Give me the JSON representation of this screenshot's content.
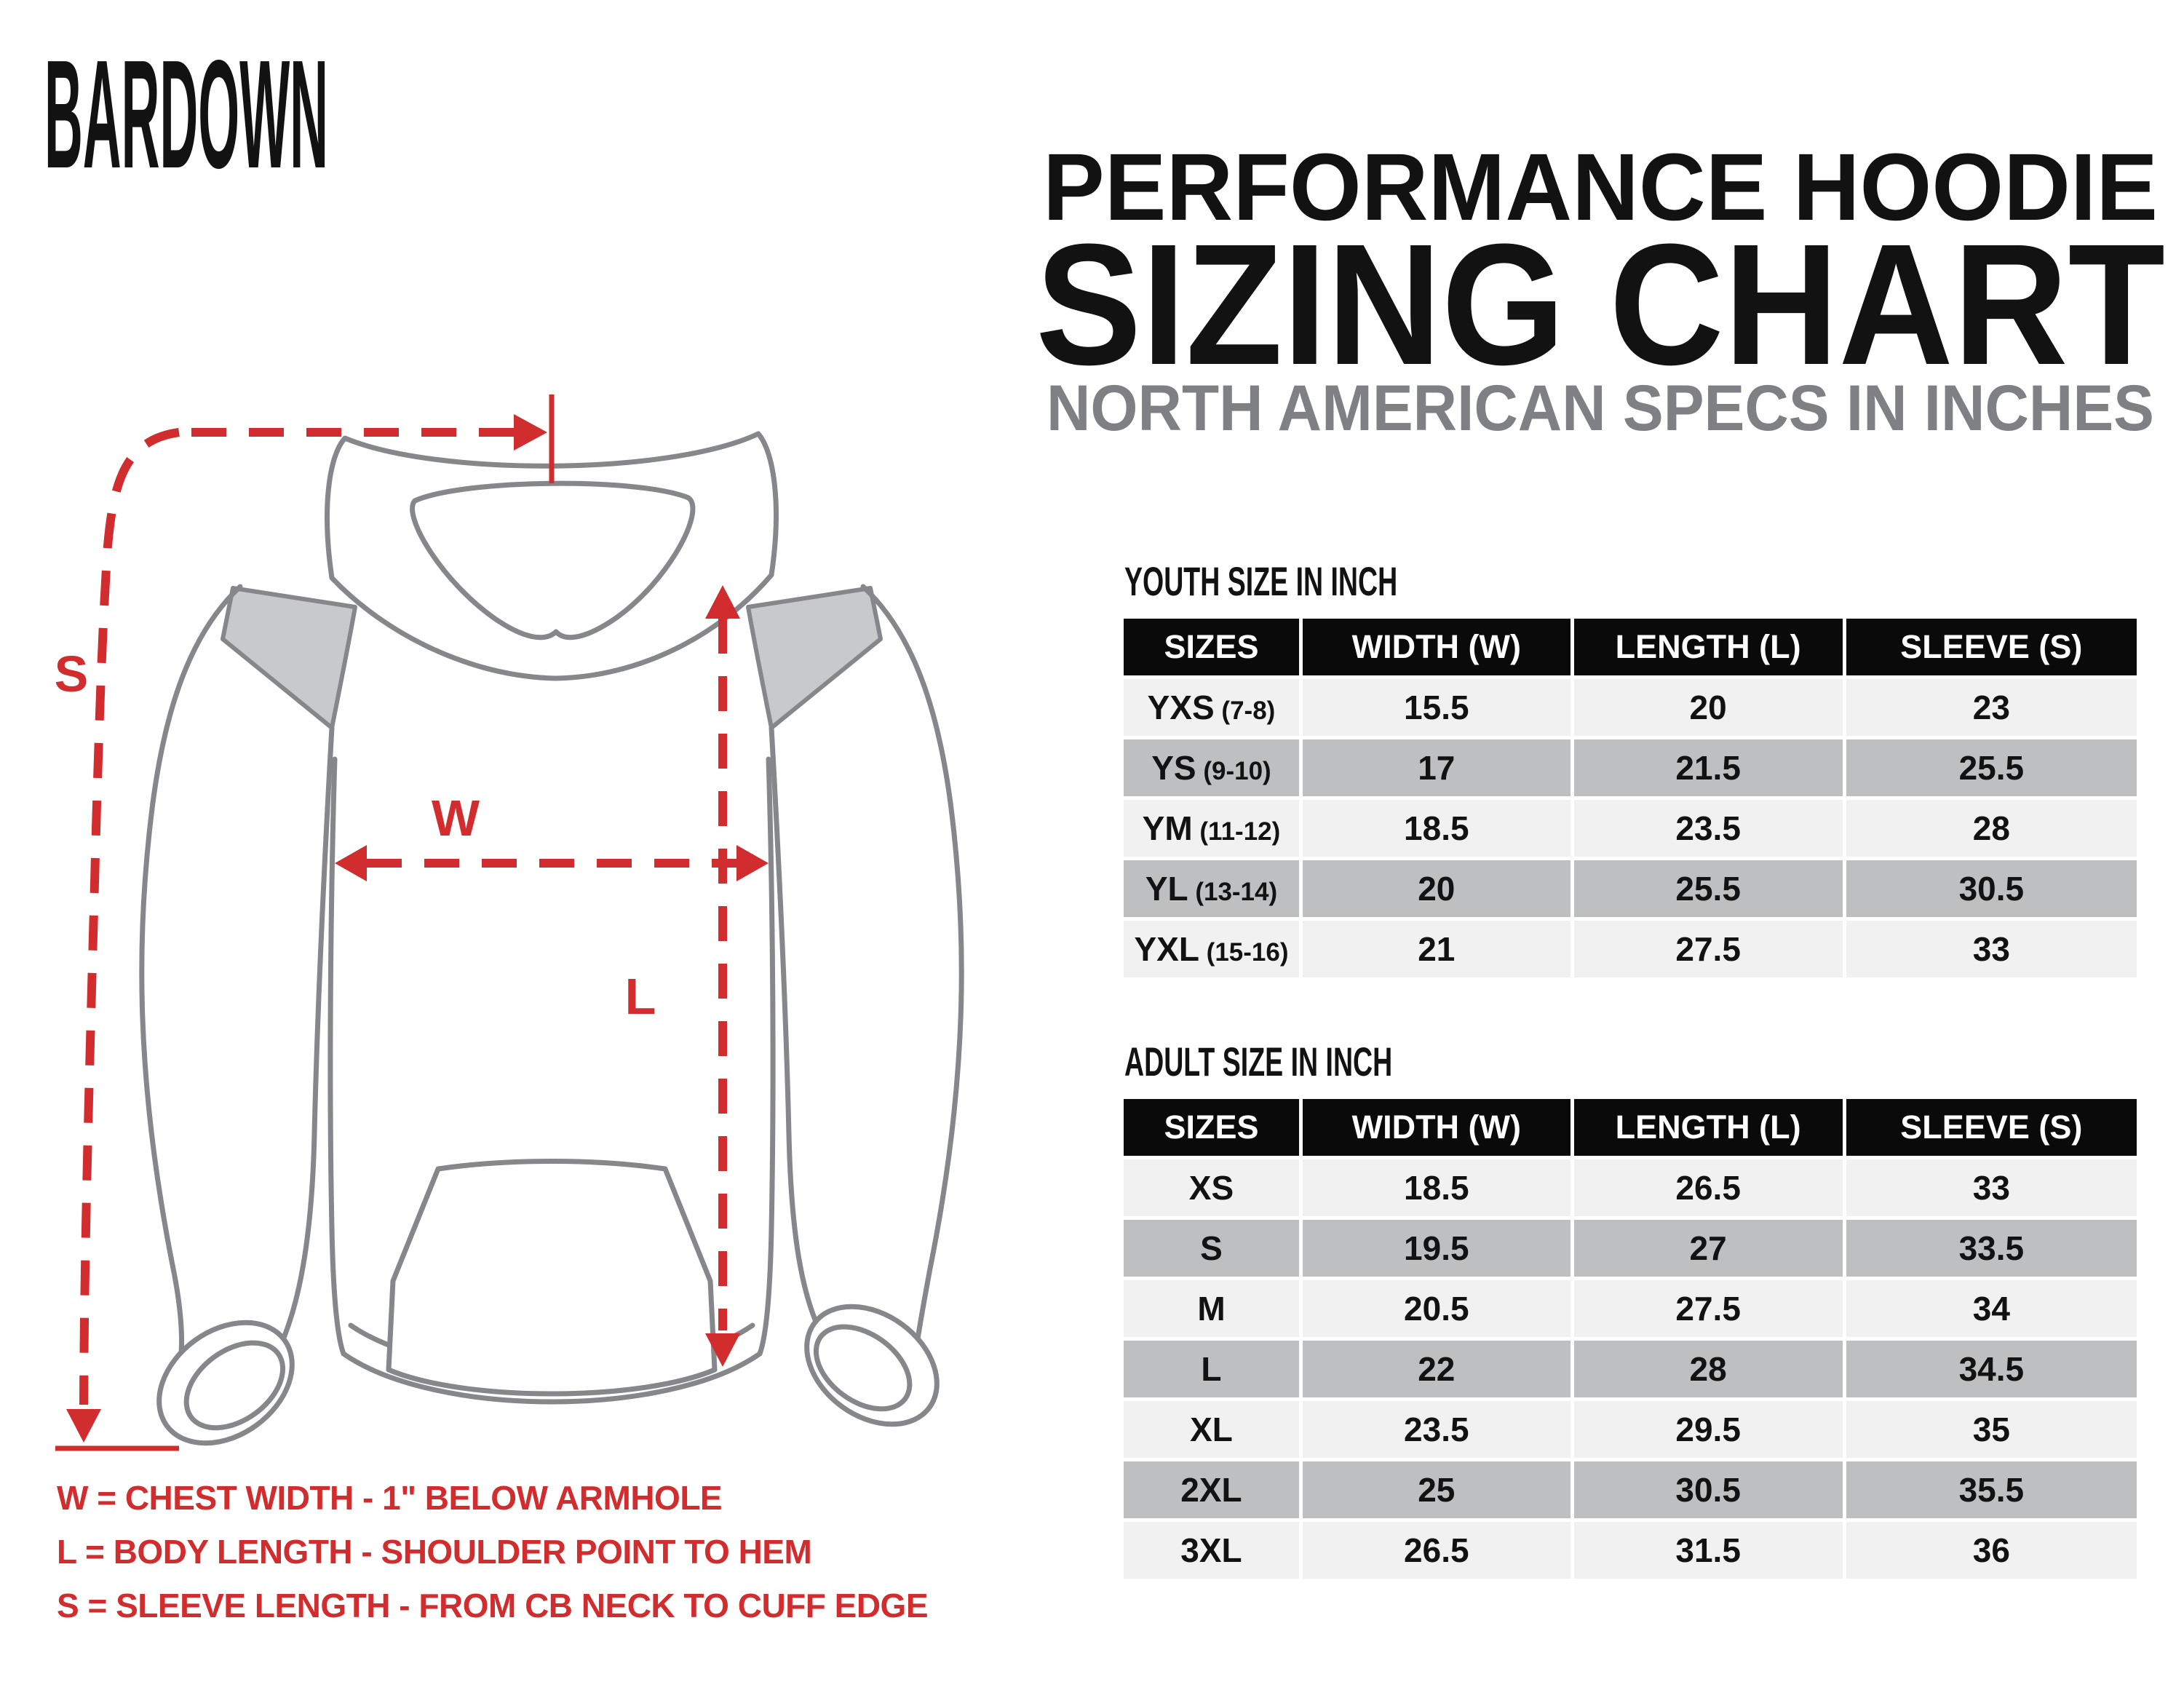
{
  "brand": {
    "logo_text": "BARDOWN"
  },
  "header": {
    "title_line1": "PERFORMANCE HOODIE",
    "title_line2": "SIZING CHART",
    "subtitle": "NORTH AMERICAN SPECS IN INCHES"
  },
  "diagram": {
    "labels": {
      "sleeve": "S",
      "width": "W",
      "length": "L"
    }
  },
  "legend": {
    "lines": [
      "W = CHEST WIDTH - 1\" BELOW ARMHOLE",
      "L = BODY LENGTH - SHOULDER POINT TO HEM",
      "S = SLEEVE LENGTH - FROM CB NECK TO CUFF EDGE"
    ]
  },
  "youth_table": {
    "title": "YOUTH SIZE IN INCH",
    "columns": [
      "SIZES",
      "WIDTH (W)",
      "LENGTH (L)",
      "SLEEVE (S)"
    ],
    "rows": [
      {
        "size": "YXS",
        "age": "(7-8)",
        "width": "15.5",
        "length": "20",
        "sleeve": "23"
      },
      {
        "size": "YS",
        "age": "(9-10)",
        "width": "17",
        "length": "21.5",
        "sleeve": "25.5"
      },
      {
        "size": "YM",
        "age": "(11-12)",
        "width": "18.5",
        "length": "23.5",
        "sleeve": "28"
      },
      {
        "size": "YL",
        "age": "(13-14)",
        "width": "20",
        "length": "25.5",
        "sleeve": "30.5"
      },
      {
        "size": "YXL",
        "age": "(15-16)",
        "width": "21",
        "length": "27.5",
        "sleeve": "33"
      }
    ]
  },
  "adult_table": {
    "title": "ADULT SIZE IN INCH",
    "columns": [
      "SIZES",
      "WIDTH (W)",
      "LENGTH (L)",
      "SLEEVE (S)"
    ],
    "rows": [
      {
        "size": "XS",
        "age": "",
        "width": "18.5",
        "length": "26.5",
        "sleeve": "33"
      },
      {
        "size": "S",
        "age": "",
        "width": "19.5",
        "length": "27",
        "sleeve": "33.5"
      },
      {
        "size": "M",
        "age": "",
        "width": "20.5",
        "length": "27.5",
        "sleeve": "34"
      },
      {
        "size": "L",
        "age": "",
        "width": "22",
        "length": "28",
        "sleeve": "34.5"
      },
      {
        "size": "XL",
        "age": "",
        "width": "23.5",
        "length": "29.5",
        "sleeve": "35"
      },
      {
        "size": "2XL",
        "age": "",
        "width": "25",
        "length": "30.5",
        "sleeve": "35.5"
      },
      {
        "size": "3XL",
        "age": "",
        "width": "26.5",
        "length": "31.5",
        "sleeve": "36"
      }
    ]
  },
  "colors": {
    "accent_red": "#d12c2e",
    "header_bg": "#0a0a0b",
    "row_light": "#f1f1f2",
    "row_gray": "#bdbfc1",
    "subtitle_gray": "#7e8083",
    "outline_gray": "#85878a",
    "panel_gray": "#c7c9cb"
  }
}
